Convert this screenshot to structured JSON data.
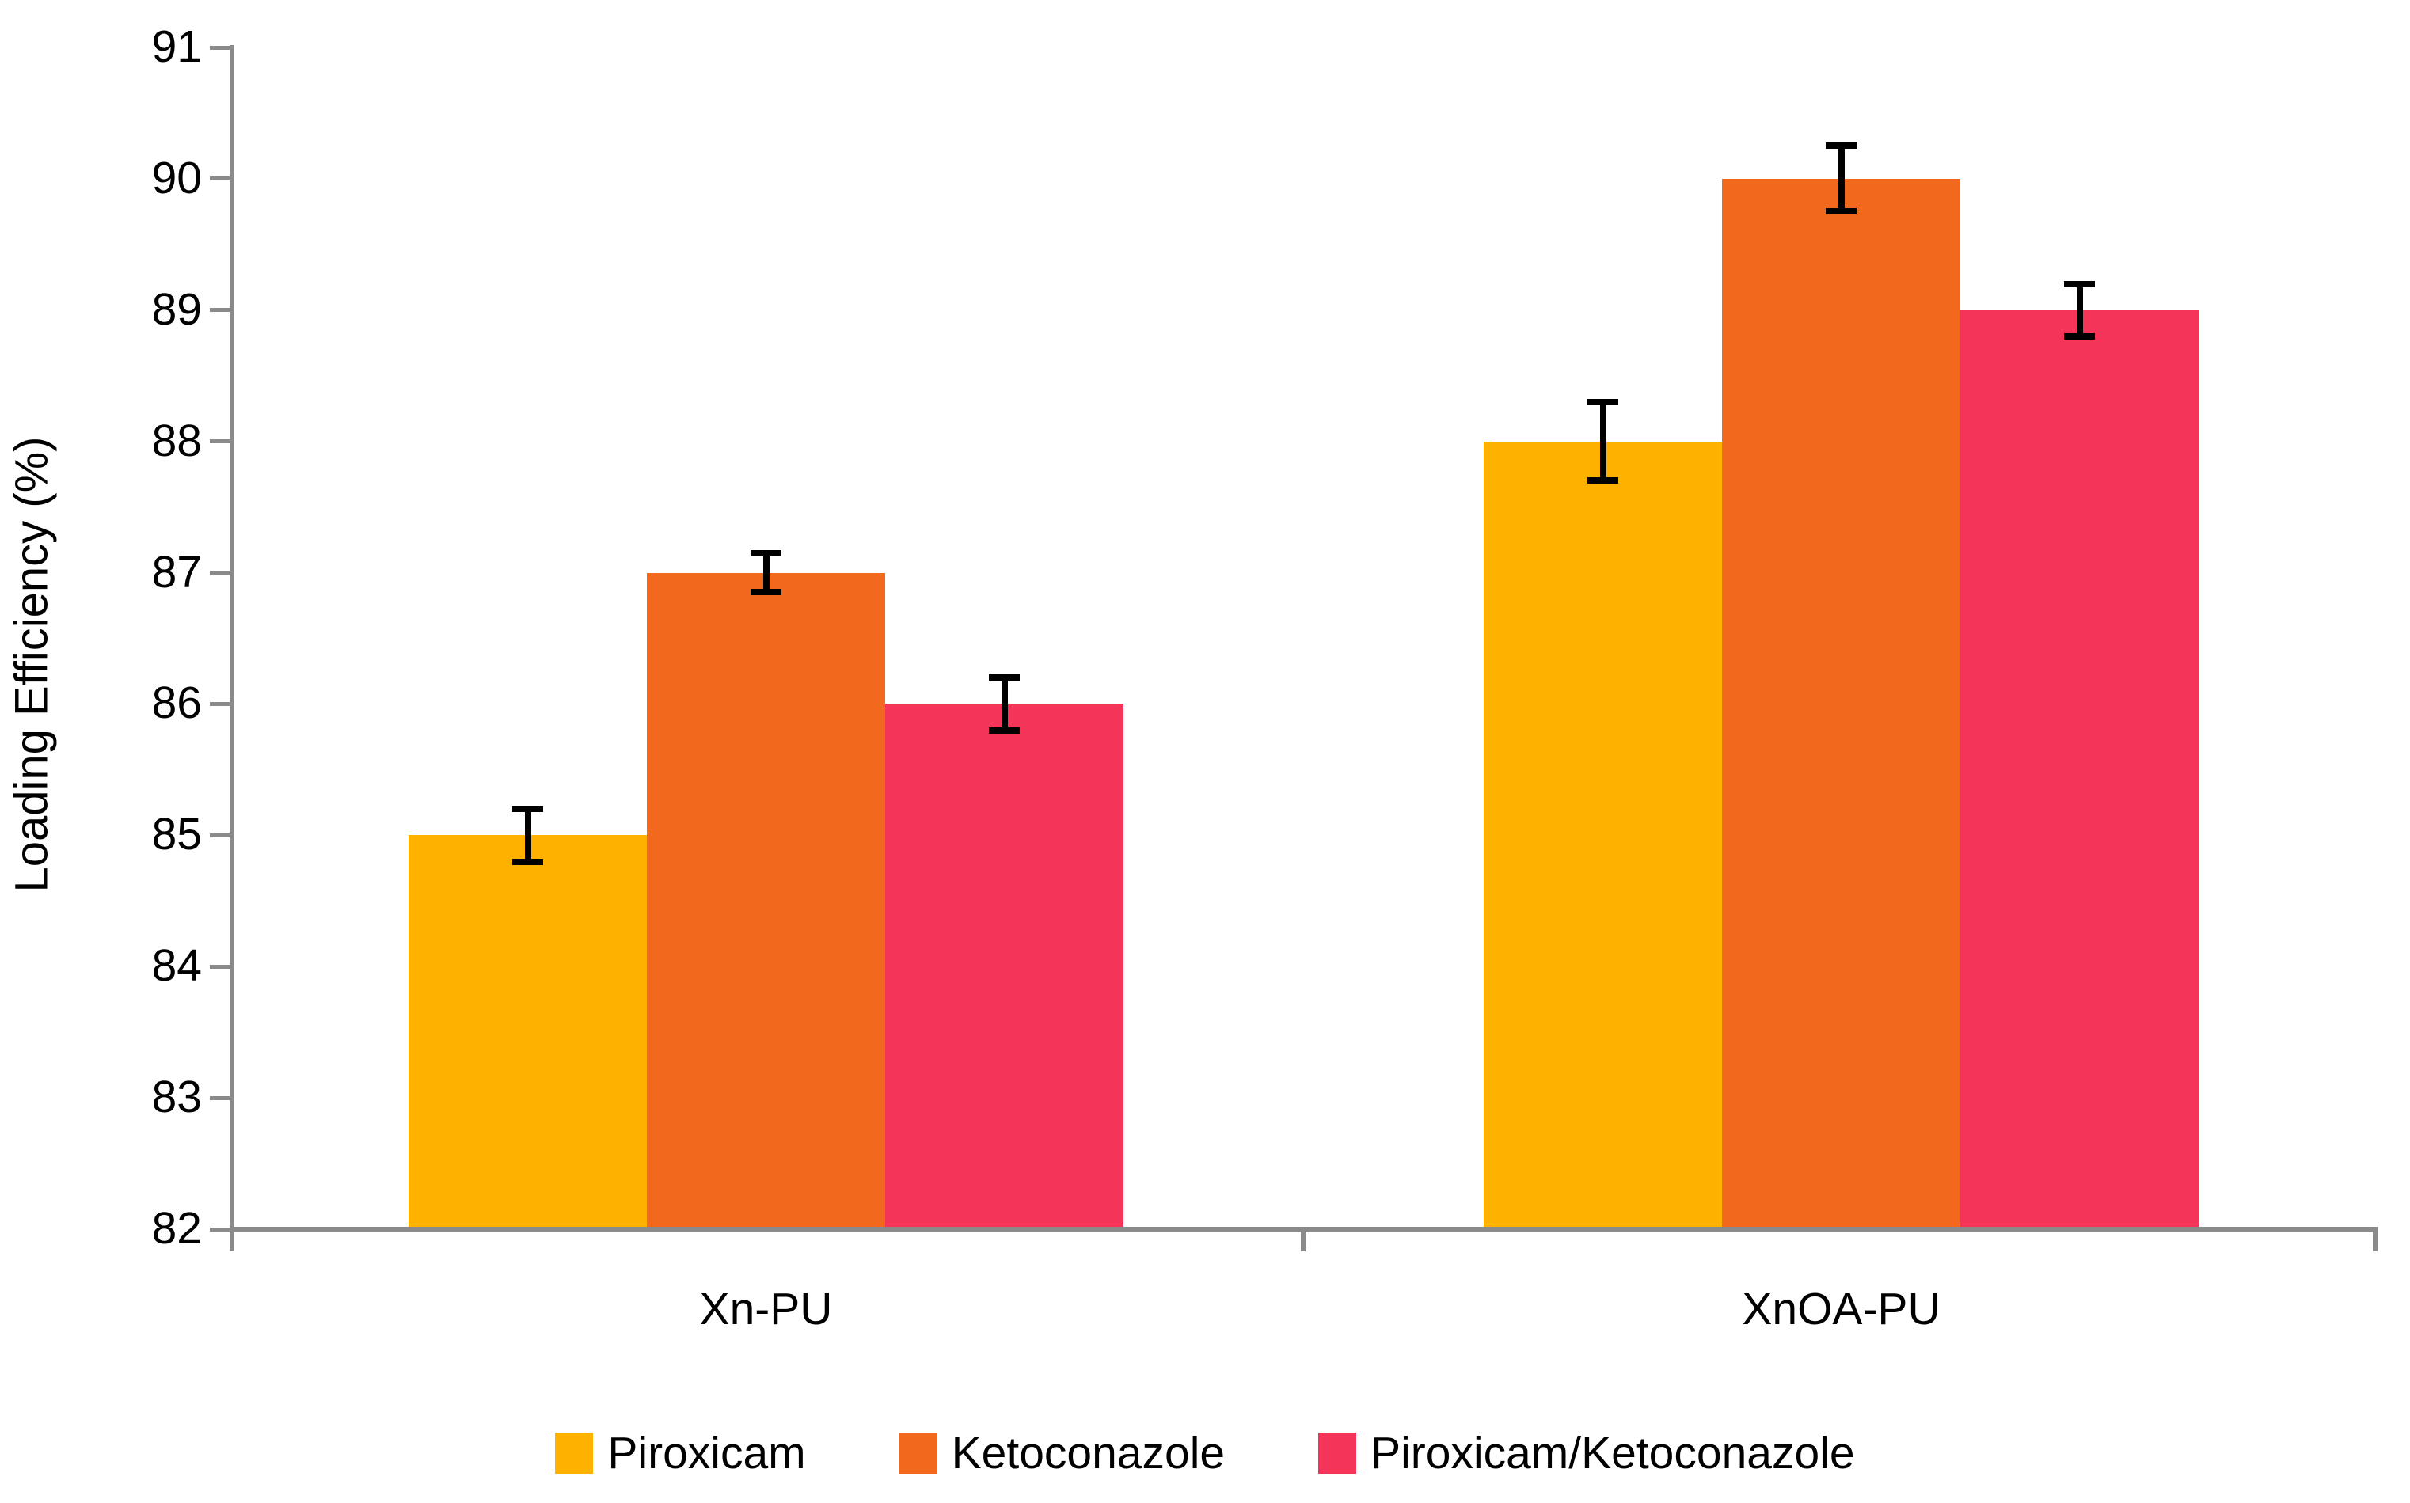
{
  "chart_data": {
    "type": "bar",
    "title": "",
    "xlabel": "",
    "ylabel": "Loading Efficiency (%)",
    "ylim": [
      82,
      91
    ],
    "yticks": [
      82,
      83,
      84,
      85,
      86,
      87,
      88,
      89,
      90,
      91
    ],
    "categories": [
      "Xn-PU",
      "XnOA-PU"
    ],
    "series": [
      {
        "name": "Piroxicam",
        "color": "#FFB100",
        "values": [
          85,
          88
        ],
        "errors": [
          0.2,
          0.3
        ]
      },
      {
        "name": "Ketoconazole",
        "color": "#F2691E",
        "values": [
          87,
          90
        ],
        "errors": [
          0.15,
          0.25
        ]
      },
      {
        "name": "Piroxicam/Ketoconazole",
        "color": "#F43559",
        "values": [
          86,
          89
        ],
        "errors": [
          0.2,
          0.2
        ]
      }
    ],
    "error_bars": true,
    "error_bar_color": "#000000",
    "axis_color": "#8A8A8A",
    "grid": false,
    "legend_position": "bottom",
    "background": "#FFFFFF"
  }
}
